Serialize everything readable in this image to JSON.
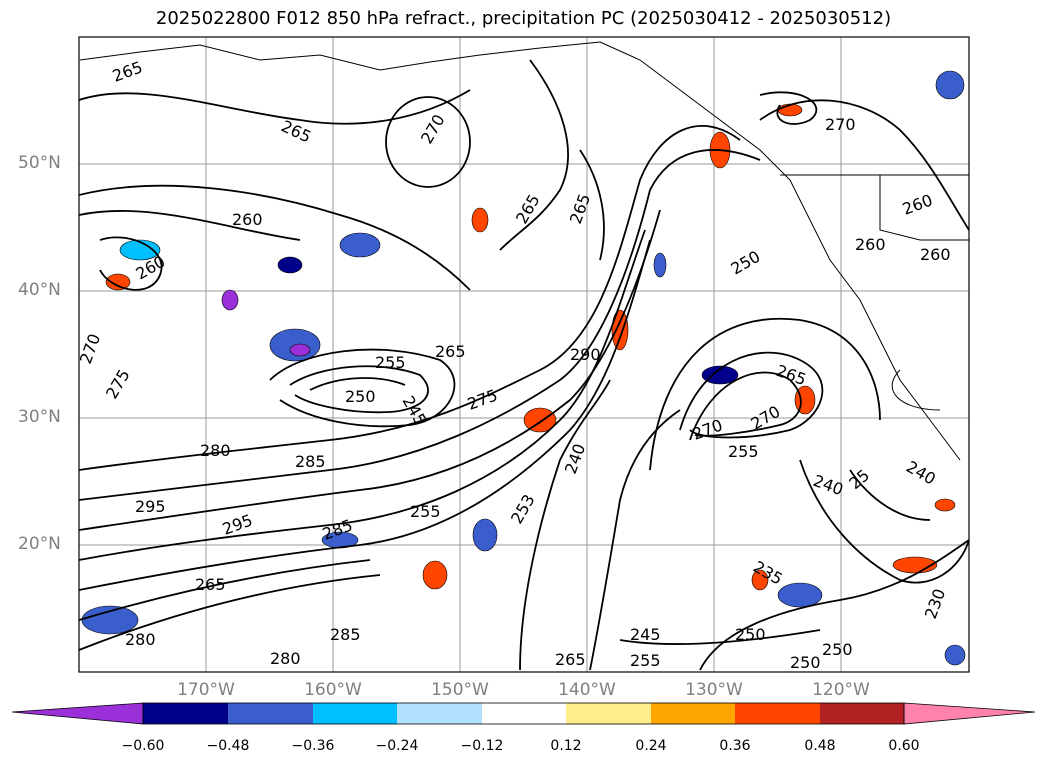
{
  "title": "2025022800 F012 850 hPa refract., precipitation PC (2025030412 - 2025030512)",
  "map": {
    "lat_labels": [
      "50°N",
      "40°N",
      "30°N",
      "20°N"
    ],
    "lon_labels": [
      "170°W",
      "160°W",
      "150°W",
      "140°W",
      "130°W",
      "120°W"
    ],
    "contour_labels": [
      "265",
      "265",
      "270",
      "260",
      "260",
      "265",
      "265",
      "270",
      "250",
      "260",
      "260",
      "260",
      "270",
      "275",
      "265",
      "255",
      "250",
      "245",
      "265",
      "270",
      "280",
      "285",
      "275",
      "240",
      "270",
      "255",
      "295",
      "295",
      "285",
      "255",
      "253",
      "265",
      "235",
      "245",
      "250",
      "255",
      "250",
      "230",
      "240",
      "240",
      "25",
      "250",
      "285",
      "265",
      "280",
      "280",
      "290"
    ]
  },
  "colorbar": {
    "tick_labels": [
      "−0.60",
      "−0.48",
      "−0.36",
      "−0.24",
      "−0.12",
      "0.12",
      "0.24",
      "0.36",
      "0.48",
      "0.60"
    ],
    "colors": [
      "#9b30d8",
      "#00008b",
      "#3a5fcd",
      "#00bfff",
      "#b0e2ff",
      "#ffffff",
      "#ffec8b",
      "#ffa500",
      "#ff4500",
      "#b22222",
      "#ff82ab"
    ]
  }
}
